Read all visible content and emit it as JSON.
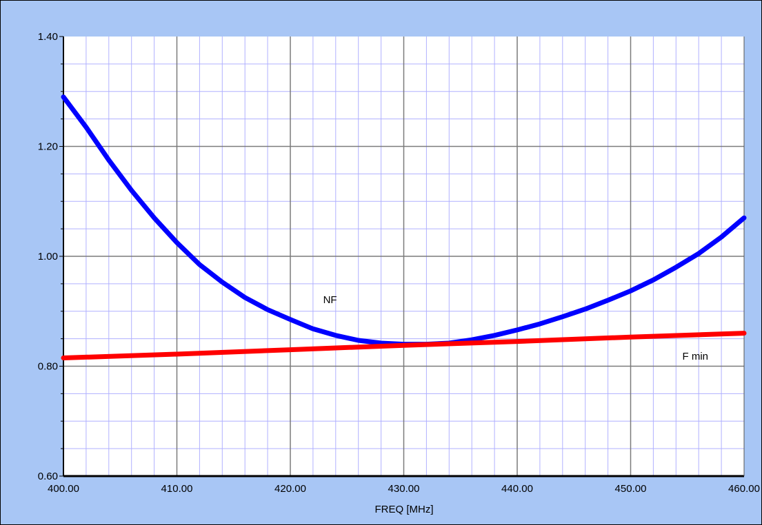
{
  "chart_data": {
    "type": "line",
    "title": "",
    "xlabel": "FREQ [MHz]",
    "ylabel": "",
    "xlim": [
      400,
      460
    ],
    "ylim": [
      0.6,
      1.4
    ],
    "x_ticks": [
      "400.00",
      "410.00",
      "420.00",
      "430.00",
      "440.00",
      "450.00",
      "460.00"
    ],
    "y_ticks": [
      "0.60",
      "0.80",
      "1.00",
      "1.20",
      "1.40"
    ],
    "grid": true,
    "x_minor_per_major": 5,
    "y_minor_per_major": 4,
    "series": [
      {
        "name": "NF",
        "color": "#0000ff",
        "x": [
          400,
          402,
          404,
          406,
          408,
          410,
          412,
          414,
          416,
          418,
          420,
          422,
          424,
          426,
          428,
          430,
          432,
          434,
          436,
          438,
          440,
          442,
          444,
          446,
          448,
          450,
          452,
          454,
          456,
          458,
          460
        ],
        "y": [
          1.29,
          1.235,
          1.175,
          1.12,
          1.07,
          1.025,
          0.985,
          0.953,
          0.925,
          0.903,
          0.885,
          0.868,
          0.856,
          0.847,
          0.842,
          0.84,
          0.84,
          0.842,
          0.848,
          0.856,
          0.866,
          0.877,
          0.89,
          0.904,
          0.92,
          0.937,
          0.957,
          0.98,
          1.005,
          1.035,
          1.07
        ]
      },
      {
        "name": "F min",
        "color": "#ff0000",
        "x": [
          400,
          410,
          420,
          430,
          440,
          450,
          460
        ],
        "y": [
          0.815,
          0.822,
          0.83,
          0.838,
          0.845,
          0.853,
          0.86
        ]
      }
    ],
    "annotations": [
      {
        "text": "NF",
        "x": 423.5,
        "y": 0.915
      },
      {
        "text": "F min",
        "x": 455.7,
        "y": 0.812
      }
    ]
  }
}
